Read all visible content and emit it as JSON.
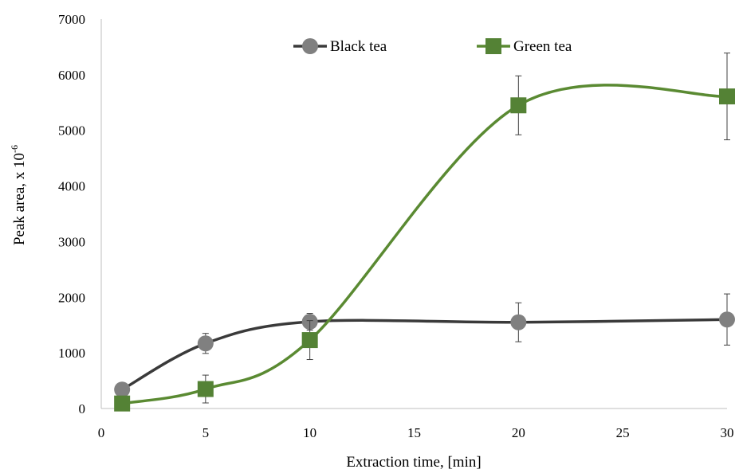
{
  "chart_data": {
    "type": "line",
    "title": "",
    "xlabel": "Extraction time, [min]",
    "ylabel": "Peak area, x 10",
    "ylabel_superscript": "-6",
    "xlim": [
      0,
      30
    ],
    "ylim": [
      0,
      7000
    ],
    "xticks": [
      "0",
      "5",
      "10",
      "15",
      "20",
      "25",
      "30"
    ],
    "yticks": [
      "0",
      "1000",
      "2000",
      "3000",
      "4000",
      "5000",
      "6000",
      "7000"
    ],
    "grid": false,
    "legend_position": "top-center",
    "smooth": true,
    "series": [
      {
        "name": "Black tea",
        "color": "#3a3a3a",
        "marker_color": "#808080",
        "marker": "circle",
        "x": [
          1,
          5,
          10,
          20,
          30
        ],
        "y": [
          340,
          1170,
          1560,
          1550,
          1600
        ],
        "error": [
          0,
          180,
          150,
          350,
          460
        ]
      },
      {
        "name": "Green tea",
        "color": "#5a8a32",
        "marker_color": "#548235",
        "marker": "square",
        "x": [
          1,
          5,
          10,
          20,
          30
        ],
        "y": [
          90,
          350,
          1230,
          5450,
          5610
        ],
        "error": [
          0,
          250,
          350,
          530,
          780
        ]
      }
    ]
  }
}
